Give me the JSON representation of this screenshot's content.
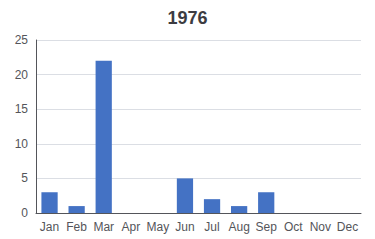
{
  "chart_data": {
    "type": "bar",
    "title": "1976",
    "categories": [
      "Jan",
      "Feb",
      "Mar",
      "Apr",
      "May",
      "Jun",
      "Jul",
      "Aug",
      "Sep",
      "Oct",
      "Nov",
      "Dec"
    ],
    "values": [
      3,
      1,
      22,
      0,
      0,
      5,
      2,
      1,
      3,
      0,
      0,
      0
    ],
    "color": "#4472C4",
    "ylim": [
      0,
      25
    ],
    "yticks": [
      0,
      5,
      10,
      15,
      20,
      25
    ],
    "grid": true
  }
}
